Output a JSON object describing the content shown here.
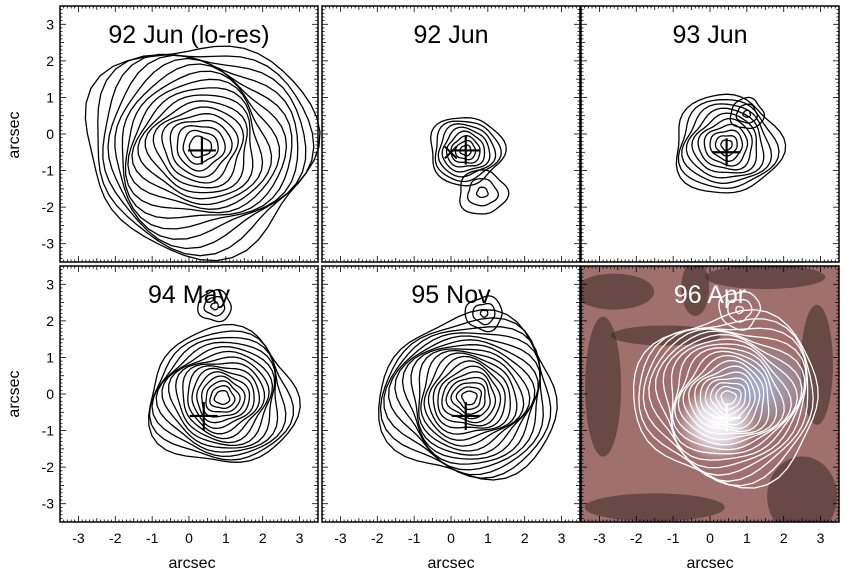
{
  "chart_data": {
    "type": "contour",
    "layout": "2x3 panel grid, shared axes",
    "xlabel": "arcsec",
    "ylabel": "arcsec",
    "xlim": [
      -3.5,
      3.5
    ],
    "ylim": [
      -3.5,
      3.5
    ],
    "x_ticks": [
      "-3",
      "-2",
      "-1",
      "0",
      "1",
      "2",
      "3"
    ],
    "y_ticks": [
      "-3",
      "-2",
      "-1",
      "0",
      "1",
      "2",
      "3"
    ],
    "grid": false,
    "panels": [
      {
        "title": "92 Jun (lo-res)",
        "cross": [
          0.35,
          -0.45
        ],
        "background_image": false,
        "contour_color": "#000000",
        "components": [
          {
            "center": [
              0.3,
              -0.35
            ],
            "radius_outer": 3.1,
            "radius_inner": 0.3,
            "levels": 17
          }
        ]
      },
      {
        "title": "92 Jun",
        "cross": [
          0.4,
          -0.45
        ],
        "secondary_marker": "x",
        "background_image": false,
        "contour_color": "#000000",
        "components": [
          {
            "center": [
              0.4,
              -0.45
            ],
            "radius_outer": 1.0,
            "radius_inner": 0.15,
            "levels": 8
          },
          {
            "center": [
              0.85,
              -1.6
            ],
            "radius_outer": 0.65,
            "radius_inner": 0.15,
            "levels": 3
          }
        ]
      },
      {
        "title": "93 Jun",
        "cross": [
          0.45,
          -0.5
        ],
        "background_image": false,
        "contour_color": "#000000",
        "components": [
          {
            "center": [
              0.45,
              -0.3
            ],
            "radius_outer": 1.45,
            "radius_inner": 0.15,
            "levels": 10
          },
          {
            "center": [
              1.0,
              0.55
            ],
            "radius_outer": 0.45,
            "radius_inner": 0.1,
            "levels": 3
          }
        ]
      },
      {
        "title": "94 May",
        "cross": [
          0.4,
          -0.6
        ],
        "background_image": false,
        "contour_color": "#000000",
        "components": [
          {
            "center": [
              0.9,
              -0.1
            ],
            "radius_outer": 2.0,
            "radius_inner": 0.2,
            "levels": 15
          },
          {
            "center": [
              0.7,
              2.4
            ],
            "radius_outer": 0.45,
            "radius_inner": 0.1,
            "levels": 3
          }
        ]
      },
      {
        "title": "95 Nov",
        "cross": [
          0.4,
          -0.6
        ],
        "background_image": false,
        "contour_color": "#000000",
        "components": [
          {
            "center": [
              0.5,
              -0.1
            ],
            "radius_outer": 2.4,
            "radius_inner": 0.2,
            "levels": 18
          },
          {
            "center": [
              0.9,
              2.2
            ],
            "radius_outer": 0.5,
            "radius_inner": 0.1,
            "levels": 3
          }
        ]
      },
      {
        "title": "96 Apr",
        "cross": [
          0.45,
          -0.65
        ],
        "background_image": true,
        "contour_color": "#ffffff",
        "components": [
          {
            "center": [
              0.5,
              -0.1
            ],
            "radius_outer": 2.5,
            "radius_inner": 0.2,
            "levels": 18
          },
          {
            "center": [
              0.8,
              2.3
            ],
            "radius_outer": 0.55,
            "radius_inner": 0.1,
            "levels": 3
          }
        ]
      }
    ]
  },
  "colors": {
    "contour": "#000000",
    "contour_on_image": "#ffffff",
    "image_base": "#a0706e",
    "image_dark": "#3a2a27",
    "image_highlight": "#e8f0ff",
    "image_blue_glow": "#8ea7cc"
  }
}
